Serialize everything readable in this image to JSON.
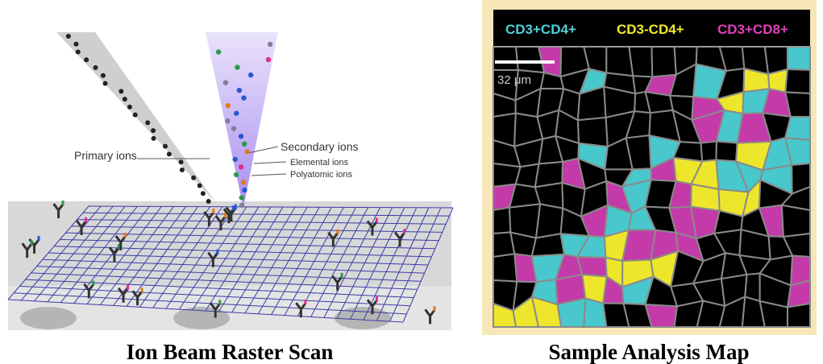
{
  "left_panel": {
    "labels": {
      "primary": "Primary ions",
      "secondary": "Secondary ions",
      "elemental": "Elemental ions",
      "polyatomic": "Polyatomic ions"
    },
    "caption": "Ion Beam Raster Scan"
  },
  "right_panel": {
    "legend": [
      "CD3+CD4+",
      "CD3-CD4+",
      "CD3+CD8+"
    ],
    "scale_bar": "32 μm",
    "caption": "Sample Analysis Map"
  }
}
